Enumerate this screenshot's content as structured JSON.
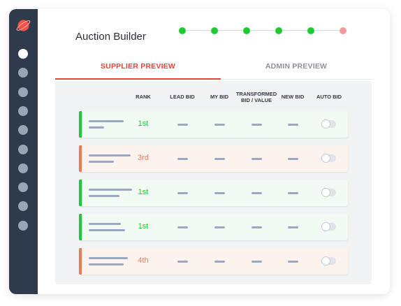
{
  "header": {
    "title": "Auction Builder",
    "steps": [
      {
        "state": "complete",
        "color": "#1ec932"
      },
      {
        "state": "complete",
        "color": "#1ec932"
      },
      {
        "state": "complete",
        "color": "#1ec932"
      },
      {
        "state": "complete",
        "color": "#1ec932"
      },
      {
        "state": "complete",
        "color": "#1ec932"
      },
      {
        "state": "pending",
        "color": "#f49a9a"
      }
    ]
  },
  "sidebar": {
    "logo_icon": "planet-icon",
    "items_count_visible": 10,
    "active_index": 0
  },
  "tabs": [
    {
      "label": "SUPPLIER PREVIEW",
      "active": true,
      "color": "#e8423c"
    },
    {
      "label": "ADMIN PREVIEW",
      "active": false,
      "color": "#8c929c"
    }
  ],
  "table": {
    "columns": [
      "RANK",
      "LEAD BID",
      "MY BID",
      "TRANSFORMED\nBID / VALUE",
      "NEW BID",
      "AUTO BID"
    ],
    "rows": [
      {
        "rank": "1st",
        "status": "leading",
        "auto_bid": false
      },
      {
        "rank": "3rd",
        "status": "trailing",
        "auto_bid": false
      },
      {
        "rank": "1st",
        "status": "leading",
        "auto_bid": false
      },
      {
        "rank": "1st",
        "status": "leading",
        "auto_bid": false
      },
      {
        "rank": "4th",
        "status": "trailing",
        "auto_bid": false
      }
    ]
  },
  "colors": {
    "sidebar_bg": "#2f3a4d",
    "accent_red": "#e8423c",
    "leading": "#1ec932",
    "leading_row_bg": "#f2fbf3",
    "trailing": "#f07a4f",
    "trailing_row_bg": "#fdf3ee"
  }
}
